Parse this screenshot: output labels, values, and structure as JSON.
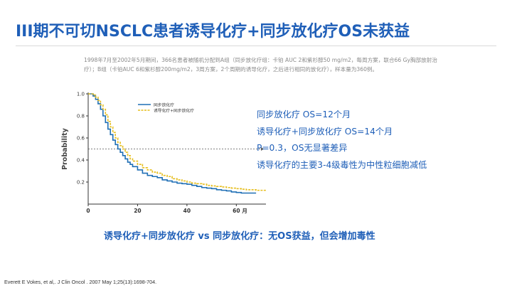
{
  "slide": {
    "title": "III期不可切NSCLC患者诱导化疗+同步放化疗OS未获益",
    "subtitle": "1998年7月至2002年5月期间，366名患者被随机分配到A组（同步放化疗组：卡铂 AUC 2和紫杉醇50 mg/m2，每周方案，联合66 Gy胸部放射治疗）；B组（卡铂AUC 6和紫杉醇200mg/m2，3周方案，2个周期的诱导化疗，之后进行相同的放化疗），样本量为360例。",
    "notes": [
      "同步放化疗 OS=12个月",
      "诱导化疗+同步放化疗 OS=14个月",
      "P=0.3，OS无显著差异",
      "诱导化疗的主要3-4级毒性为中性粒细胞减低"
    ],
    "conclusion": "诱导化疗+同步放化疗 vs 同步放化疗：无OS获益，但会增加毒性",
    "reference": "Everett E Vokes, et al,. J Clin Oncol . 2007 May 1;25(13):1698-704.",
    "colors": {
      "title": "#1f5fb8",
      "series_a": "#1f6fb5",
      "series_b": "#e6be1e"
    }
  },
  "chart_data": {
    "type": "line",
    "ylabel": "Probability",
    "xlabel": "",
    "x_unit_label": "月",
    "xlim": [
      0,
      72
    ],
    "ylim": [
      0,
      1.0
    ],
    "x_ticks": [
      0,
      20,
      40,
      60
    ],
    "y_ticks": [
      0.2,
      0.4,
      0.6,
      0.8,
      1.0
    ],
    "y_tick_labels": [
      "0.2",
      "0.4",
      "0.6",
      "0.8",
      "1.0"
    ],
    "legend_position": "top-right",
    "median_line_y": 0.5,
    "series": [
      {
        "name": "同步放化疗",
        "color": "#1f6fb5",
        "style": "solid",
        "x": [
          0,
          2,
          3,
          4,
          5,
          6,
          7,
          8,
          9,
          10,
          11,
          12,
          13,
          14,
          15,
          16,
          17,
          18,
          20,
          22,
          24,
          26,
          28,
          30,
          32,
          34,
          36,
          38,
          40,
          42,
          44,
          46,
          48,
          50,
          52,
          54,
          56,
          58,
          60,
          62,
          64,
          66,
          68
        ],
        "y": [
          1.0,
          0.98,
          0.95,
          0.91,
          0.86,
          0.8,
          0.74,
          0.68,
          0.63,
          0.58,
          0.54,
          0.5,
          0.47,
          0.44,
          0.41,
          0.38,
          0.36,
          0.34,
          0.31,
          0.28,
          0.26,
          0.25,
          0.24,
          0.22,
          0.21,
          0.2,
          0.19,
          0.185,
          0.18,
          0.17,
          0.16,
          0.15,
          0.145,
          0.14,
          0.13,
          0.125,
          0.12,
          0.11,
          0.105,
          0.1,
          0.1,
          0.1,
          0.1
        ]
      },
      {
        "name": "诱导化疗+同步放化疗",
        "color": "#e6be1e",
        "style": "dashed",
        "x": [
          0,
          2,
          3,
          4,
          5,
          6,
          7,
          8,
          9,
          10,
          11,
          12,
          13,
          14,
          15,
          16,
          17,
          18,
          20,
          22,
          24,
          26,
          28,
          30,
          32,
          34,
          36,
          38,
          40,
          42,
          44,
          46,
          48,
          50,
          52,
          54,
          56,
          58,
          60,
          62,
          64,
          66,
          68,
          70,
          72
        ],
        "y": [
          1.0,
          0.99,
          0.97,
          0.94,
          0.9,
          0.86,
          0.81,
          0.75,
          0.7,
          0.65,
          0.6,
          0.56,
          0.53,
          0.5,
          0.47,
          0.44,
          0.41,
          0.39,
          0.36,
          0.33,
          0.31,
          0.29,
          0.28,
          0.26,
          0.25,
          0.23,
          0.22,
          0.21,
          0.2,
          0.19,
          0.185,
          0.18,
          0.17,
          0.165,
          0.16,
          0.155,
          0.15,
          0.145,
          0.14,
          0.135,
          0.13,
          0.13,
          0.125,
          0.125,
          0.125
        ]
      }
    ]
  }
}
